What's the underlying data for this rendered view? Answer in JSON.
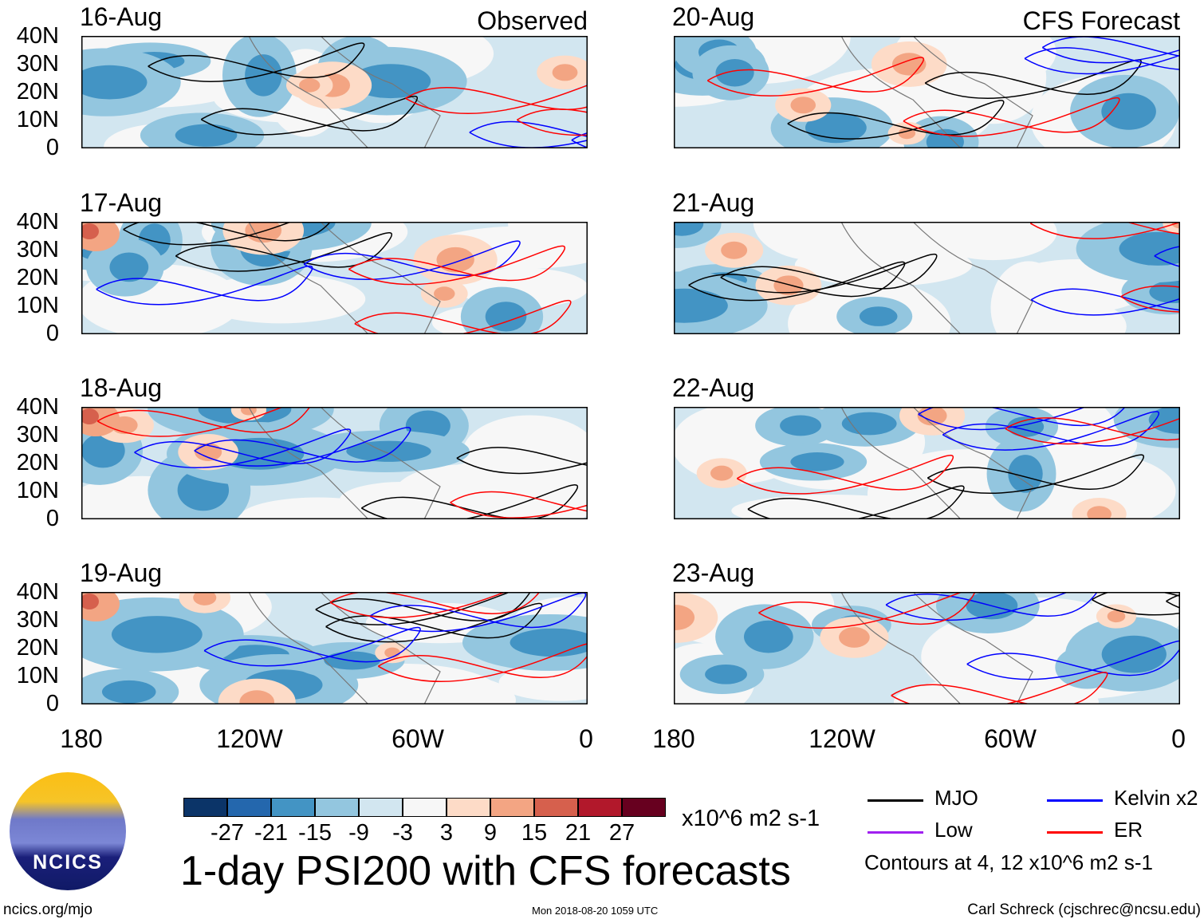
{
  "columns": [
    {
      "title": "Observed",
      "panels": [
        "16-Aug",
        "17-Aug",
        "18-Aug",
        "19-Aug"
      ]
    },
    {
      "title": "CFS Forecast",
      "panels": [
        "20-Aug",
        "21-Aug",
        "22-Aug",
        "23-Aug"
      ]
    }
  ],
  "lat_labels": [
    "40N",
    "30N",
    "20N",
    "10N",
    "0"
  ],
  "lon_labels": [
    "180",
    "120W",
    "60W",
    "0"
  ],
  "colorbar": {
    "labels": [
      "-27",
      "-21",
      "-15",
      "-9",
      "-3",
      "3",
      "9",
      "15",
      "21",
      "27"
    ],
    "colors": [
      "#0b3468",
      "#2467ad",
      "#4394c4",
      "#93c6df",
      "#d2e6f0",
      "#f7f7f7",
      "#fddbc7",
      "#f3a583",
      "#d6604d",
      "#b2182b",
      "#67001f"
    ],
    "units": "x10^6 m2 s-1"
  },
  "title": "1-day PSI200 with CFS forecasts",
  "legend": {
    "items": [
      {
        "label": "MJO",
        "color": "#000000"
      },
      {
        "label": "Kelvin x2",
        "color": "#0000ff"
      },
      {
        "label": "Low",
        "color": "#a020f0"
      },
      {
        "label": "ER",
        "color": "#ff0000"
      }
    ],
    "note": "Contours at 4, 12 x10^6 m2 s-1"
  },
  "logo_text": "NCICS",
  "footer": {
    "left": "ncics.org/mjo",
    "center": "Mon 2018-08-20 1059 UTC",
    "right": "Carl Schreck (cjschrec@ncsu.edu)"
  }
}
